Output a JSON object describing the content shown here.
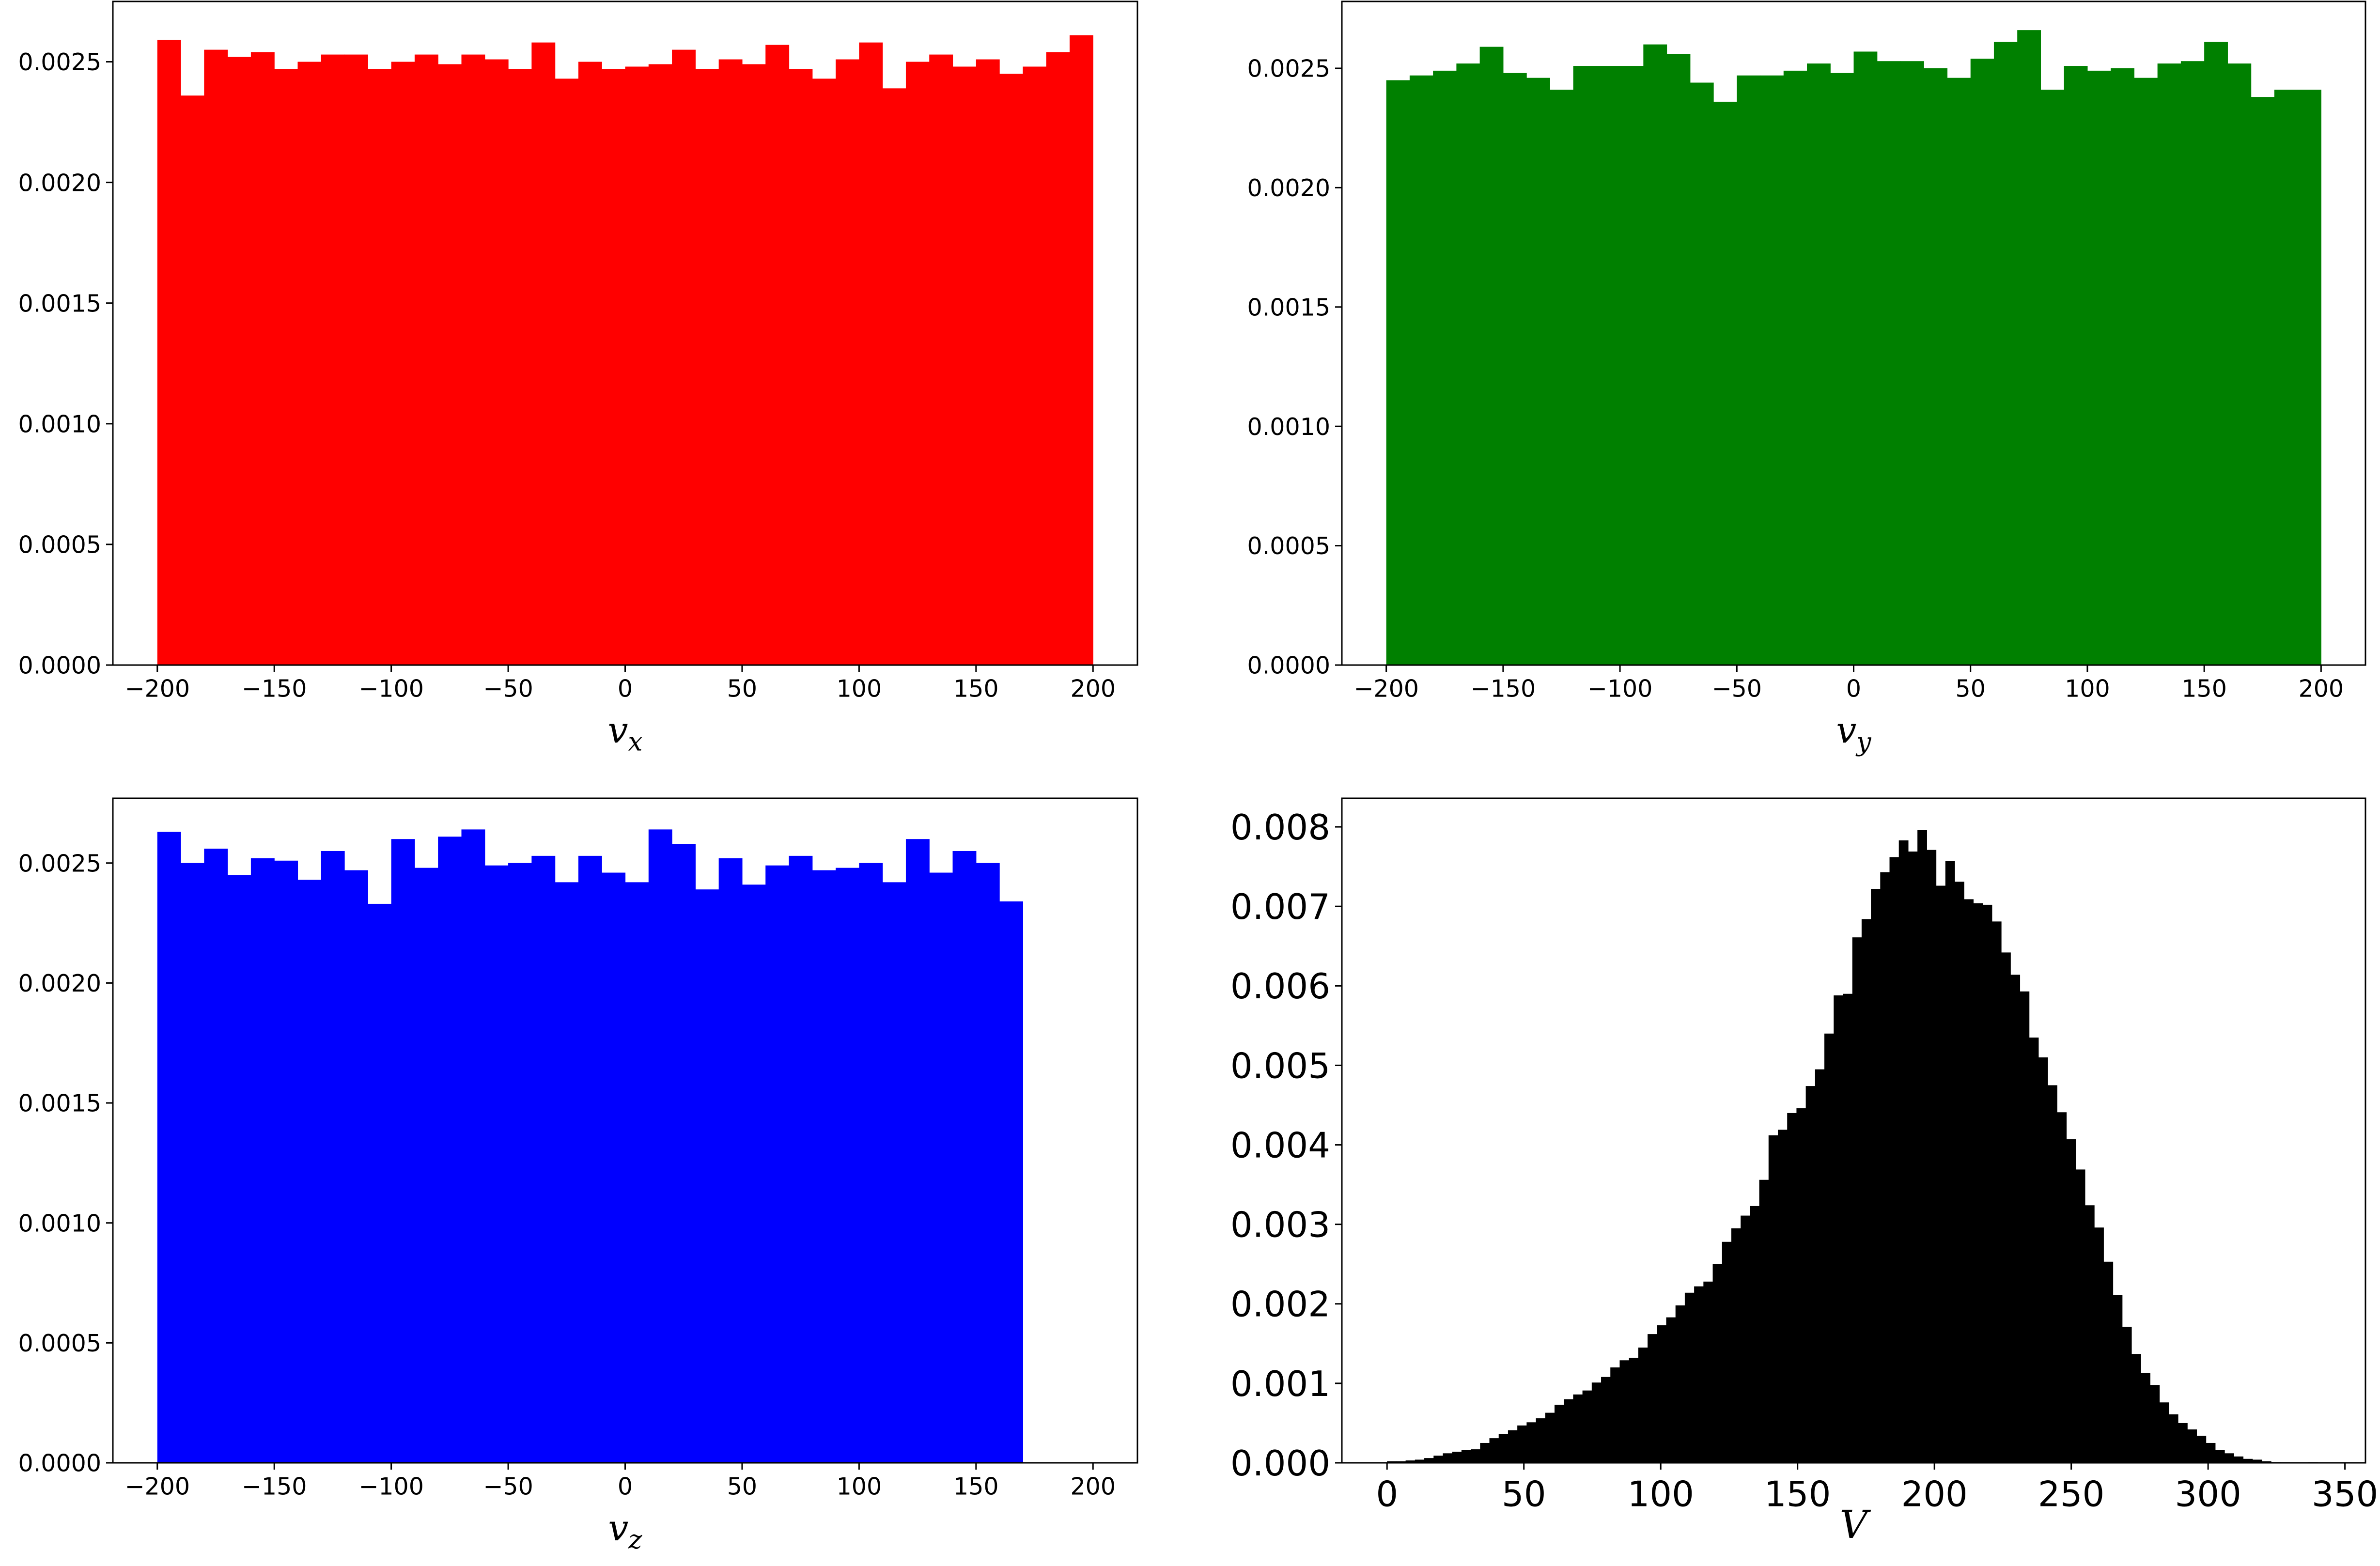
{
  "chart_data": [
    {
      "type": "bar",
      "id": "vx",
      "xlabel": "v",
      "xlabel_sub": "x",
      "color": "#ff0000",
      "xlim": [
        -219,
        219
      ],
      "ylim": [
        0,
        0.00275
      ],
      "bin_start": -200,
      "bin_width": 10,
      "values": [
        0.00259,
        0.00236,
        0.00255,
        0.00252,
        0.00254,
        0.00247,
        0.0025,
        0.00253,
        0.00253,
        0.00247,
        0.0025,
        0.00253,
        0.00249,
        0.00253,
        0.00251,
        0.00247,
        0.00258,
        0.00243,
        0.0025,
        0.00247,
        0.00248,
        0.00249,
        0.00255,
        0.00247,
        0.00251,
        0.00249,
        0.00257,
        0.00247,
        0.00243,
        0.00251,
        0.00258,
        0.00239,
        0.0025,
        0.00253,
        0.00248,
        0.00251,
        0.00245,
        0.00248,
        0.00254,
        0.00261
      ],
      "xticks": [
        -200,
        -150,
        -100,
        -50,
        0,
        50,
        100,
        150,
        200
      ],
      "xtick_labels": [
        "−200",
        "−150",
        "−100",
        "−50",
        "0",
        "50",
        "100",
        "150",
        "200"
      ],
      "yticks": [
        0,
        0.0005,
        0.001,
        0.0015,
        0.002,
        0.0025
      ],
      "ytick_labels": [
        "0.0000",
        "0.0005",
        "0.0010",
        "0.0015",
        "0.0020",
        "0.0025"
      ],
      "grid": false
    },
    {
      "type": "bar",
      "id": "vy",
      "xlabel": "v",
      "xlabel_sub": "y",
      "color": "#008000",
      "xlim": [
        -219,
        219
      ],
      "ylim": [
        0,
        0.00278
      ],
      "bin_start": -200,
      "bin_width": 10,
      "values": [
        0.00245,
        0.00247,
        0.00249,
        0.00252,
        0.00259,
        0.00248,
        0.00246,
        0.00241,
        0.00251,
        0.00251,
        0.00251,
        0.0026,
        0.00256,
        0.00244,
        0.00236,
        0.00247,
        0.00247,
        0.00249,
        0.00252,
        0.00248,
        0.00257,
        0.00253,
        0.00253,
        0.0025,
        0.00246,
        0.00254,
        0.00261,
        0.00266,
        0.00241,
        0.00251,
        0.00249,
        0.0025,
        0.00246,
        0.00252,
        0.00253,
        0.00261,
        0.00252,
        0.00238,
        0.00241,
        0.00241
      ],
      "xticks": [
        -200,
        -150,
        -100,
        -50,
        0,
        50,
        100,
        150,
        200
      ],
      "xtick_labels": [
        "−200",
        "−150",
        "−100",
        "−50",
        "0",
        "50",
        "100",
        "150",
        "200"
      ],
      "yticks": [
        0,
        0.0005,
        0.001,
        0.0015,
        0.002,
        0.0025
      ],
      "ytick_labels": [
        "0.0000",
        "0.0005",
        "0.0010",
        "0.0015",
        "0.0020",
        "0.0025"
      ],
      "grid": false
    },
    {
      "type": "bar",
      "id": "vz",
      "xlabel": "v",
      "xlabel_sub": "z",
      "color": "#0000ff",
      "xlim": [
        -219,
        219
      ],
      "ylim": [
        0,
        0.00277
      ],
      "bin_start": -200,
      "bin_width": 10,
      "values": [
        0.00263,
        0.0025,
        0.00256,
        0.00245,
        0.00252,
        0.00251,
        0.00243,
        0.00255,
        0.00247,
        0.00233,
        0.0026,
        0.00248,
        0.00261,
        0.00264,
        0.00249,
        0.0025,
        0.00253,
        0.00242,
        0.00253,
        0.00246,
        0.00242,
        0.00264,
        0.00258,
        0.00239,
        0.00252,
        0.00241,
        0.00249,
        0.00253,
        0.00247,
        0.00248,
        0.0025,
        0.00242,
        0.0026,
        0.00246,
        0.00255,
        0.0025,
        0.00234
      ],
      "xticks": [
        -200,
        -150,
        -100,
        -50,
        0,
        50,
        100,
        150,
        200
      ],
      "xtick_labels": [
        "−200",
        "−150",
        "−100",
        "−50",
        "0",
        "50",
        "100",
        "150",
        "200"
      ],
      "yticks": [
        0,
        0.0005,
        0.001,
        0.0015,
        0.002,
        0.0025
      ],
      "ytick_labels": [
        "0.0000",
        "0.0005",
        "0.0010",
        "0.0015",
        "0.0020",
        "0.0025"
      ],
      "grid": false
    },
    {
      "type": "bar",
      "id": "V",
      "xlabel": "V",
      "xlabel_sub": "",
      "color": "#000000",
      "xlim": [
        -16.5,
        357.5
      ],
      "ylim": [
        0,
        0.00836
      ],
      "bin_start": 0,
      "bin_width": 3.4,
      "values": [
        2e-05,
        2e-05,
        3e-05,
        4e-05,
        6e-05,
        9e-05,
        0.00012,
        0.00014,
        0.00016,
        0.00017,
        0.00025,
        0.00031,
        0.00036,
        0.00041,
        0.00047,
        0.00051,
        0.00056,
        0.00063,
        0.00073,
        0.0008,
        0.00086,
        0.00091,
        0.00101,
        0.00108,
        0.0012,
        0.00129,
        0.00132,
        0.00145,
        0.00162,
        0.00173,
        0.00183,
        0.00198,
        0.00214,
        0.00222,
        0.00228,
        0.0025,
        0.00278,
        0.00295,
        0.00311,
        0.00323,
        0.00356,
        0.00412,
        0.00419,
        0.0044,
        0.00446,
        0.00474,
        0.00495,
        0.0054,
        0.00588,
        0.0059,
        0.00661,
        0.00684,
        0.00722,
        0.00743,
        0.00762,
        0.00783,
        0.00769,
        0.00796,
        0.00771,
        0.00726,
        0.00757,
        0.00731,
        0.00709,
        0.00704,
        0.00702,
        0.00681,
        0.00642,
        0.00614,
        0.00593,
        0.00535,
        0.0051,
        0.00475,
        0.00441,
        0.00407,
        0.00369,
        0.00324,
        0.00296,
        0.00253,
        0.00211,
        0.00171,
        0.00137,
        0.00113,
        0.00098,
        0.00076,
        0.00061,
        0.0005,
        0.00042,
        0.00034,
        0.00025,
        0.00016,
        0.00012,
        8e-05,
        5e-05,
        4e-05,
        2e-05,
        1e-05,
        1e-05,
        0.0,
        0.0,
        1e-05
      ],
      "xticks": [
        0,
        50,
        100,
        150,
        200,
        250,
        300,
        350
      ],
      "xtick_labels": [
        "0",
        "50",
        "100",
        "150",
        "200",
        "250",
        "300",
        "350"
      ],
      "yticks": [
        0,
        0.001,
        0.002,
        0.003,
        0.004,
        0.005,
        0.006,
        0.007,
        0.008
      ],
      "ytick_labels": [
        "0.000",
        "0.001",
        "0.002",
        "0.003",
        "0.004",
        "0.005",
        "0.006",
        "0.007",
        "0.008"
      ],
      "grid": false
    }
  ]
}
